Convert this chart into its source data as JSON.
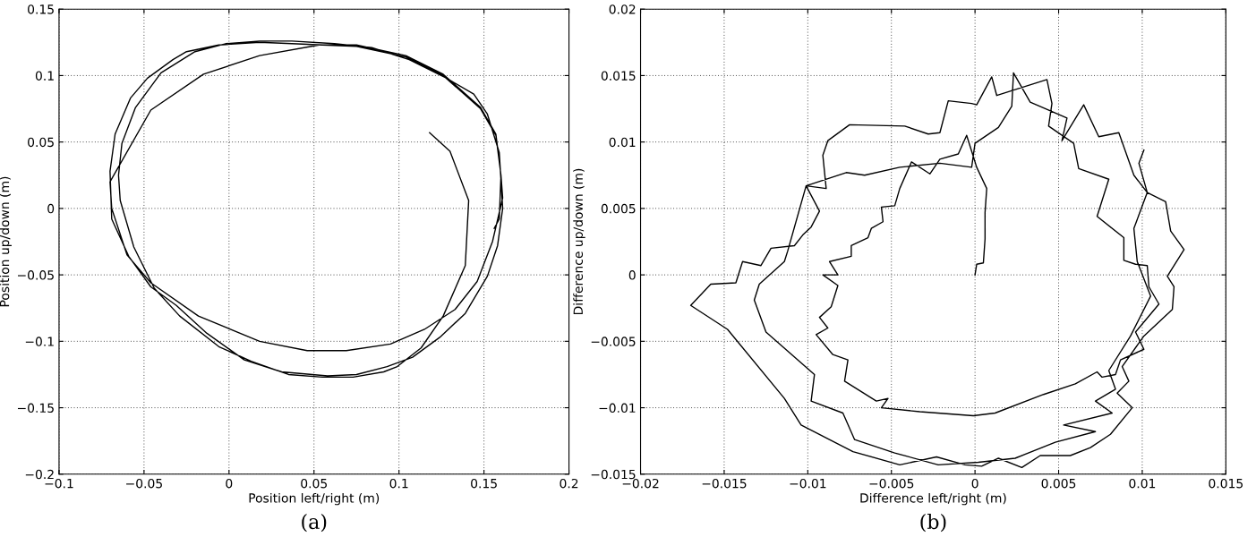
{
  "chart_data": [
    {
      "type": "line",
      "xlabel": "Position left/right (m)",
      "ylabel": "Position up/down (m)",
      "annotations": [
        "(a)"
      ],
      "xlim": [
        -0.1,
        0.2
      ],
      "ylim": [
        -0.2,
        0.15
      ],
      "xticks": [
        {
          "value": -0.1,
          "label": "−0.1"
        },
        {
          "value": -0.05,
          "label": "−0.05"
        },
        0,
        0.05,
        0.1,
        0.15,
        0.2
      ],
      "yticks": [
        {
          "value": -0.2,
          "label": "−0.2"
        },
        {
          "value": -0.15,
          "label": "−0.15"
        },
        {
          "value": -0.1,
          "label": "−0.1"
        },
        {
          "value": -0.05,
          "label": "−0.05"
        },
        0,
        0.05,
        0.1,
        0.15
      ],
      "grid": true,
      "line_style": "solid",
      "marker": "none",
      "series": [
        {
          "color": "#000000",
          "x": [
            0.118,
            0.13,
            0.141,
            0.139,
            0.126,
            0.113,
            0.099,
            0.091,
            0.073,
            0.055,
            0.035,
            0.013,
            -0.006,
            -0.029,
            -0.044,
            -0.056,
            -0.064,
            -0.065,
            -0.063,
            -0.055,
            -0.04,
            -0.02,
            -0.002,
            0.018,
            0.037,
            0.062,
            0.084,
            0.106,
            0.128,
            0.144,
            0.152,
            0.159,
            0.161,
            0.158,
            0.152,
            0.139,
            0.124,
            0.108,
            0.093,
            0.075,
            0.058,
            0.031,
            0.009,
            -0.013,
            -0.031,
            -0.046,
            -0.059,
            -0.069,
            -0.07,
            -0.067,
            -0.058,
            -0.048,
            -0.033,
            -0.025,
            -0.006,
            0.018,
            0.037,
            0.055,
            0.075,
            0.104,
            0.126,
            0.148,
            0.157,
            0.16,
            0.161,
            0.155,
            0.146,
            0.133,
            0.115,
            0.095,
            0.069,
            0.046,
            0.018,
            -0.018,
            -0.046,
            -0.06,
            -0.069,
            -0.07,
            -0.046,
            -0.015,
            0.018,
            0.053,
            0.075,
            0.104,
            0.126,
            0.148,
            0.157,
            0.16,
            0.159,
            0.156
          ],
          "values": [
            0.057,
            0.043,
            0.006,
            -0.043,
            -0.081,
            -0.105,
            -0.119,
            -0.123,
            -0.127,
            -0.127,
            -0.125,
            -0.115,
            -0.104,
            -0.081,
            -0.06,
            -0.029,
            0.006,
            0.025,
            0.049,
            0.076,
            0.102,
            0.118,
            0.124,
            0.126,
            0.126,
            0.124,
            0.121,
            0.112,
            0.098,
            0.086,
            0.071,
            0.042,
            0.0,
            -0.028,
            -0.051,
            -0.079,
            -0.097,
            -0.112,
            -0.119,
            -0.125,
            -0.126,
            -0.123,
            -0.114,
            -0.094,
            -0.073,
            -0.059,
            -0.036,
            -0.008,
            0.028,
            0.056,
            0.083,
            0.098,
            0.112,
            0.118,
            0.123,
            0.125,
            0.124,
            0.123,
            0.122,
            0.114,
            0.1,
            0.075,
            0.055,
            0.025,
            0.008,
            -0.025,
            -0.055,
            -0.076,
            -0.091,
            -0.102,
            -0.107,
            -0.107,
            -0.1,
            -0.081,
            -0.056,
            -0.035,
            0.0,
            0.02,
            0.074,
            0.101,
            0.115,
            0.123,
            0.123,
            0.115,
            0.101,
            0.076,
            0.056,
            0.025,
            -0.008,
            -0.015
          ]
        }
      ]
    },
    {
      "type": "line",
      "xlabel": "Difference left/right (m)",
      "ylabel": "Difference up/down (m)",
      "annotations": [
        "(b)"
      ],
      "xlim": [
        -0.02,
        0.015
      ],
      "ylim": [
        -0.015,
        0.02
      ],
      "xticks": [
        {
          "value": -0.02,
          "label": "−0.02"
        },
        {
          "value": -0.015,
          "label": "−0.015"
        },
        {
          "value": -0.01,
          "label": "−0.01"
        },
        {
          "value": -0.005,
          "label": "−0.005"
        },
        0,
        0.005,
        0.01,
        0.015
      ],
      "yticks": [
        {
          "value": -0.015,
          "label": "−0.015"
        },
        {
          "value": -0.01,
          "label": "−0.01"
        },
        {
          "value": -0.005,
          "label": "−0.005"
        },
        0,
        0.005,
        0.01,
        0.015,
        0.02
      ],
      "grid": true,
      "line_style": "solid",
      "marker": "none",
      "series": [
        {
          "color": "#000000",
          "x": [
            0.0,
            0.0001,
            0.0005,
            0.0006,
            0.0006,
            0.0007,
            0.0001,
            -0.0002,
            -0.0005,
            -0.001,
            -0.0021,
            -0.0027,
            -0.0038,
            -0.0045,
            -0.0048,
            -0.0056,
            -0.0055,
            -0.0062,
            -0.0064,
            -0.0074,
            -0.0074,
            -0.0087,
            -0.0082,
            -0.0091,
            -0.0082,
            -0.0086,
            -0.0093,
            -0.0088,
            -0.0095,
            -0.0085,
            -0.0076,
            -0.0078,
            -0.0059,
            -0.0052,
            -0.0056,
            -0.0033,
            -0.0001,
            0.0012,
            0.0041,
            0.006,
            0.0073,
            0.0076,
            0.0084,
            0.0087,
            0.0101,
            0.0096,
            0.011,
            0.0104,
            0.0103,
            0.0096,
            0.0089,
            0.0089,
            0.0073,
            0.008,
            0.0062,
            0.0059,
            0.0044,
            0.0046,
            0.0043,
            0.0013,
            0.001,
            0.0001,
            -0.0002,
            -0.0016,
            -0.0021,
            -0.0028,
            -0.0042,
            -0.0075,
            -0.0088,
            -0.0091,
            -0.0089,
            -0.0101,
            -0.0093,
            -0.0098,
            -0.0103,
            -0.0108,
            -0.0122,
            -0.0128,
            -0.0139,
            -0.0143,
            -0.0158,
            -0.017,
            -0.0148,
            -0.0114,
            -0.0104,
            -0.0073,
            -0.0045,
            -0.0023,
            -0.0006,
            0.0004,
            0.0014,
            0.0028,
            0.0039,
            0.0057,
            0.0069,
            0.0081,
            0.0094,
            0.0085,
            0.0092,
            0.0088,
            0.0101,
            0.0118,
            0.0119,
            0.0115,
            0.0125,
            0.0117,
            0.0114,
            0.0103,
            0.0095,
            0.0086,
            0.0074,
            0.0065,
            0.0052,
            0.0055,
            0.0033,
            0.0023,
            0.0022,
            0.0014,
            0.0,
            -0.0002,
            -0.0021,
            -0.0045,
            -0.0066,
            -0.0077,
            -0.0101,
            -0.0112,
            -0.0114,
            -0.0129,
            -0.0132,
            -0.0125,
            -0.0096,
            -0.0098,
            -0.0079,
            -0.0072,
            -0.0048,
            -0.0022,
            0.0002,
            0.0024,
            0.0048,
            0.0072,
            0.0053,
            0.0082,
            0.0072,
            0.0084,
            0.008,
            0.0093,
            0.0105,
            0.0097,
            0.0095,
            0.0103,
            0.0098,
            0.0101
          ],
          "values": [
            0.0,
            0.0008,
            0.0009,
            0.0027,
            0.0047,
            0.0065,
            0.0081,
            0.0093,
            0.0105,
            0.0091,
            0.0087,
            0.0076,
            0.0085,
            0.0065,
            0.0052,
            0.0051,
            0.004,
            0.0035,
            0.0028,
            0.0022,
            0.0014,
            0.001,
            0.0,
            0.0,
            -0.0008,
            -0.0024,
            -0.0032,
            -0.004,
            -0.0045,
            -0.006,
            -0.0064,
            -0.008,
            -0.0095,
            -0.0093,
            -0.01,
            -0.0103,
            -0.0106,
            -0.0104,
            -0.009,
            -0.0082,
            -0.0073,
            -0.0077,
            -0.0075,
            -0.0064,
            -0.0056,
            -0.0043,
            -0.0022,
            -0.0009,
            0.0007,
            0.0008,
            0.0011,
            0.0028,
            0.0044,
            0.0072,
            0.008,
            0.0099,
            0.0112,
            0.0129,
            0.0147,
            0.0135,
            0.0149,
            0.0128,
            0.0129,
            0.0131,
            0.0107,
            0.0106,
            0.0112,
            0.0113,
            0.0101,
            0.009,
            0.0065,
            0.0067,
            0.0048,
            0.0036,
            0.003,
            0.0022,
            0.002,
            0.0007,
            0.001,
            -0.0006,
            -0.0007,
            -0.0023,
            -0.0041,
            -0.0093,
            -0.0113,
            -0.0133,
            -0.0143,
            -0.0137,
            -0.0143,
            -0.0144,
            -0.0138,
            -0.0145,
            -0.0136,
            -0.0136,
            -0.013,
            -0.012,
            -0.01,
            -0.0089,
            -0.008,
            -0.0069,
            -0.0046,
            -0.0026,
            -0.0009,
            -0.0001,
            0.0019,
            0.0033,
            0.0055,
            0.0062,
            0.0075,
            0.0107,
            0.0104,
            0.0128,
            0.0101,
            0.0118,
            0.013,
            0.0152,
            0.0127,
            0.0111,
            0.0099,
            0.0081,
            0.0084,
            0.0081,
            0.0075,
            0.0077,
            0.0067,
            0.0018,
            0.001,
            -0.0007,
            -0.0019,
            -0.0043,
            -0.0075,
            -0.0095,
            -0.0104,
            -0.0124,
            -0.0134,
            -0.0143,
            -0.0141,
            -0.0138,
            -0.0126,
            -0.0118,
            -0.0113,
            -0.0104,
            -0.0095,
            -0.0086,
            -0.0072,
            -0.0046,
            -0.0016,
            0.001,
            0.0035,
            0.0062,
            0.0084,
            0.0094
          ]
        }
      ]
    }
  ]
}
